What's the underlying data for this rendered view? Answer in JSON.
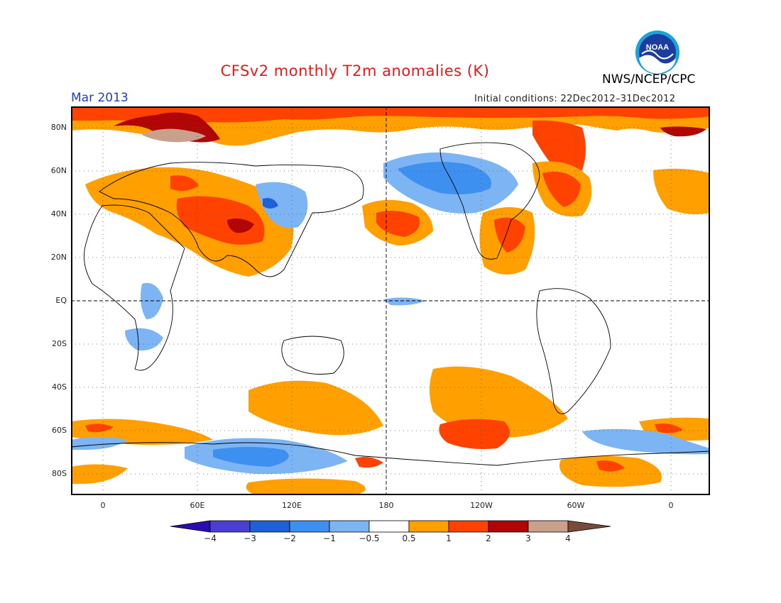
{
  "title": "CFSv2 monthly T2m anomalies (K)",
  "agency": "NWS/NCEP/CPC",
  "valid_month": "Mar 2013",
  "initial_conditions": "Initial conditions: 22Dec2012–31Dec2012",
  "logo_text": "NOAA",
  "lat_labels": [
    "80N",
    "60N",
    "40N",
    "20N",
    "EQ",
    "20S",
    "40S",
    "60S",
    "80S"
  ],
  "lon_labels": [
    "0",
    "60E",
    "120E",
    "180",
    "120W",
    "60W",
    "0"
  ],
  "colorbar": {
    "labels": [
      "−4",
      "−3",
      "−2",
      "−1",
      "−0.5",
      "0.5",
      "1",
      "2",
      "3",
      "4"
    ],
    "colors": [
      "#2a0cb0",
      "#4a3fd2",
      "#1f60d6",
      "#3d8ff0",
      "#7db4f3",
      "#ffffff",
      "#ffa000",
      "#ff4200",
      "#b10606",
      "#c8a08c",
      "#7a4a3a"
    ]
  },
  "colors": {
    "title": "#e41a1c",
    "month": "#1f3ccf",
    "warm_weak": "#ffa000",
    "warm_moderate": "#ff4200",
    "warm_strong": "#b10606",
    "warm_extreme": "#c8a08c",
    "cold_weak": "#7db4f3",
    "cold_moderate": "#3d8ff0",
    "cold_strong": "#1f60d6",
    "cold_extreme": "#4a3fd2"
  }
}
